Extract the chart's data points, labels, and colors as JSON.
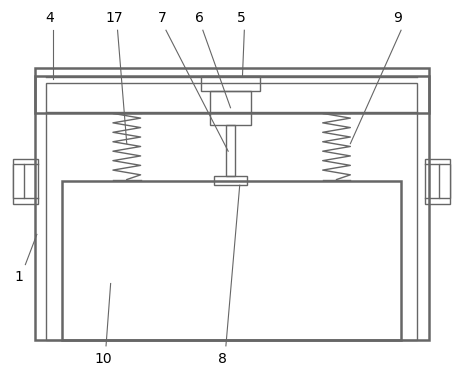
{
  "bg_color": "#ffffff",
  "line_color": "#666666",
  "line_width": 1.0,
  "fig_width": 4.61,
  "fig_height": 3.78,
  "label_fontsize": 10
}
